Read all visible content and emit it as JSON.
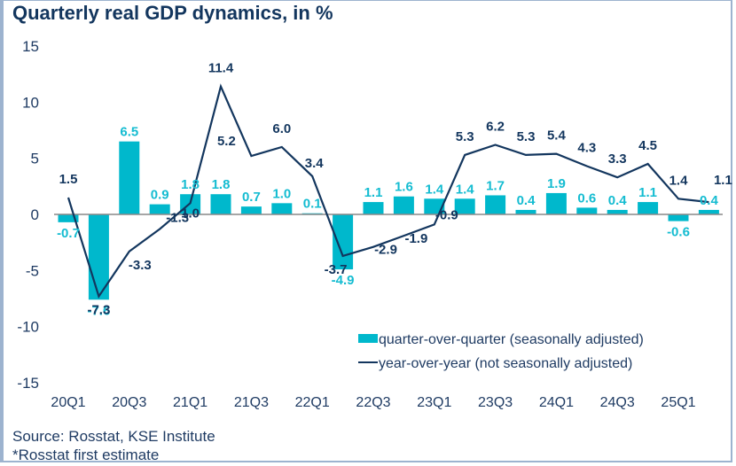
{
  "chart_data": {
    "type": "bar",
    "title": "Quarterly real GDP dynamics, in %",
    "xlabel": "",
    "ylabel": "",
    "ylim": [
      -15,
      15
    ],
    "yticks": [
      15,
      10,
      5,
      0,
      -5,
      -10,
      -15
    ],
    "quarters": [
      "20Q1",
      "20Q2",
      "20Q3",
      "20Q4",
      "21Q1",
      "21Q2",
      "21Q3",
      "21Q4",
      "22Q1",
      "22Q2",
      "22Q3",
      "22Q4",
      "23Q1",
      "23Q2",
      "23Q3",
      "23Q4",
      "24Q1",
      "24Q2",
      "24Q3",
      "24Q4",
      "25Q1",
      "25Q2"
    ],
    "xtick_labels": [
      "20Q1",
      "20Q3",
      "21Q1",
      "21Q3",
      "22Q1",
      "22Q3",
      "23Q1",
      "23Q3",
      "24Q1",
      "24Q3",
      "25Q1"
    ],
    "series": [
      {
        "name": "quarter-over-quarter (seasonally adjusted)",
        "type": "bar",
        "color": "#00b8cc",
        "values": [
          -0.7,
          -7.6,
          6.5,
          0.9,
          1.8,
          1.8,
          0.7,
          1.0,
          0.1,
          -4.9,
          1.1,
          1.6,
          1.4,
          1.4,
          1.7,
          0.4,
          1.9,
          0.6,
          0.4,
          1.1,
          -0.6,
          0.4
        ]
      },
      {
        "name": "year-over-year (not seasonally adjusted)",
        "type": "line",
        "color": "#13365e",
        "values": [
          1.5,
          -7.3,
          -3.3,
          -1.3,
          1.0,
          11.4,
          5.2,
          6.0,
          3.4,
          -3.7,
          -2.9,
          -1.9,
          -0.9,
          5.3,
          6.2,
          5.3,
          5.4,
          4.3,
          3.3,
          4.5,
          1.4,
          1.1
        ]
      }
    ],
    "legend_position": "bottom-right",
    "grid": false
  },
  "source": "Source: Rosstat, KSE Institute",
  "note": "*Rosstat first estimate"
}
